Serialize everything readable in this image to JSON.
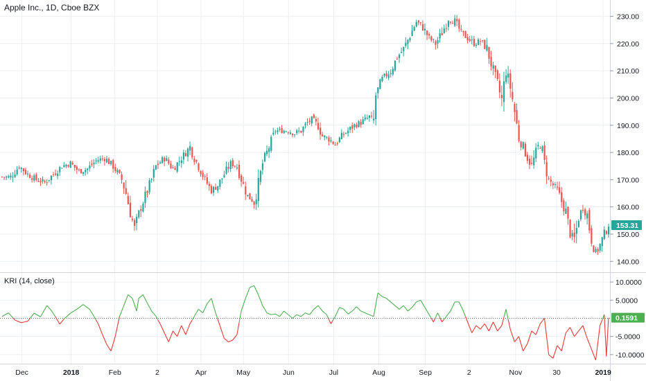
{
  "header": {
    "title": "Apple Inc., 1D, Cboe BZX"
  },
  "indicator": {
    "label": "KRI (14, close)"
  },
  "colors": {
    "up": "#26a69a",
    "down": "#ef5350",
    "kri_pos": "#4caf50",
    "kri_neg": "#e53935",
    "grid": "#eceff2"
  },
  "chart_data": [
    {
      "type": "candlestick",
      "title": "Apple Inc., 1D, Cboe BZX",
      "ylim": [
        136,
        236
      ],
      "y_ticks": [
        "140.00",
        "150.00",
        "160.00",
        "170.00",
        "180.00",
        "190.00",
        "200.00",
        "210.00",
        "220.00",
        "230.00"
      ],
      "last_price": "153.31",
      "x_labels": [
        "Dec",
        "2018",
        "Feb",
        "2",
        "Apr",
        "May",
        "Jun",
        "Jul",
        "Aug",
        "Sep",
        "2",
        "Nov",
        "30",
        "2019"
      ],
      "close_path": [
        [
          0,
          171
        ],
        [
          4,
          171
        ],
        [
          8,
          175
        ],
        [
          12,
          172
        ],
        [
          16,
          170
        ],
        [
          20,
          169
        ],
        [
          24,
          172
        ],
        [
          28,
          175
        ],
        [
          32,
          176
        ],
        [
          36,
          173
        ],
        [
          40,
          174
        ],
        [
          44,
          177
        ],
        [
          48,
          178
        ],
        [
          52,
          175
        ],
        [
          56,
          170
        ],
        [
          58,
          165
        ],
        [
          60,
          158
        ],
        [
          62,
          152
        ],
        [
          65,
          160
        ],
        [
          70,
          170
        ],
        [
          72,
          175
        ],
        [
          76,
          178
        ],
        [
          80,
          174
        ],
        [
          82,
          176
        ],
        [
          85,
          179
        ],
        [
          88,
          182
        ],
        [
          90,
          178
        ],
        [
          92,
          175
        ],
        [
          95,
          170
        ],
        [
          98,
          166
        ],
        [
          101,
          168
        ],
        [
          104,
          172
        ],
        [
          107,
          176
        ],
        [
          110,
          175
        ],
        [
          113,
          168
        ],
        [
          115,
          164
        ],
        [
          118,
          162
        ],
        [
          120,
          168
        ],
        [
          122,
          176
        ],
        [
          125,
          182
        ],
        [
          128,
          188
        ],
        [
          131,
          188
        ],
        [
          134,
          188
        ],
        [
          137,
          187
        ],
        [
          140,
          188
        ],
        [
          143,
          191
        ],
        [
          145,
          192
        ],
        [
          148,
          190
        ],
        [
          150,
          186
        ],
        [
          153,
          185
        ],
        [
          156,
          183
        ],
        [
          159,
          186
        ],
        [
          162,
          188
        ],
        [
          165,
          190
        ],
        [
          168,
          191
        ],
        [
          172,
          193
        ],
        [
          174,
          191
        ],
        [
          175,
          201
        ],
        [
          178,
          207
        ],
        [
          182,
          210
        ],
        [
          185,
          215
        ],
        [
          188,
          218
        ],
        [
          191,
          223
        ],
        [
          194,
          228
        ],
        [
          197,
          226
        ],
        [
          200,
          222
        ],
        [
          203,
          220
        ],
        [
          206,
          224
        ],
        [
          209,
          229
        ],
        [
          212,
          228
        ],
        [
          215,
          224
        ],
        [
          218,
          222
        ],
        [
          221,
          220
        ],
        [
          224,
          221
        ],
        [
          227,
          218
        ],
        [
          230,
          210
        ],
        [
          232,
          205
        ],
        [
          234,
          199
        ],
        [
          236,
          210
        ],
        [
          238,
          204
        ],
        [
          240,
          195
        ],
        [
          242,
          185
        ],
        [
          244,
          182
        ],
        [
          246,
          178
        ],
        [
          248,
          175
        ],
        [
          250,
          180
        ],
        [
          252,
          184
        ],
        [
          254,
          176
        ],
        [
          256,
          170
        ],
        [
          258,
          168
        ],
        [
          260,
          166
        ],
        [
          262,
          162
        ],
        [
          264,
          158
        ],
        [
          266,
          150
        ],
        [
          268,
          148
        ],
        [
          270,
          156
        ],
        [
          272,
          160
        ],
        [
          274,
          157
        ],
        [
          276,
          148
        ],
        [
          278,
          143
        ],
        [
          280,
          146
        ],
        [
          282,
          150
        ],
        [
          284,
          153.31
        ]
      ]
    },
    {
      "type": "line",
      "title": "KRI (14, close)",
      "ylim": [
        -12.5,
        12.5
      ],
      "y_ticks": [
        "10.0000",
        "5.0000",
        "-5.0000",
        "-10.0000"
      ],
      "y_tick_values": [
        10,
        5,
        -5,
        -10
      ],
      "last_value": "0.1591",
      "values": [
        [
          0,
          0.5
        ],
        [
          3,
          1.5
        ],
        [
          6,
          -0.5
        ],
        [
          9,
          -1.2
        ],
        [
          12,
          -0.8
        ],
        [
          15,
          1.4
        ],
        [
          18,
          0.4
        ],
        [
          21,
          3.5
        ],
        [
          23,
          2.2
        ],
        [
          25,
          0.4
        ],
        [
          27,
          -1.6
        ],
        [
          29,
          -0.2
        ],
        [
          32,
          1.4
        ],
        [
          35,
          2.5
        ],
        [
          38,
          3.8
        ],
        [
          41,
          2.5
        ],
        [
          43,
          0.6
        ],
        [
          45,
          -1.5
        ],
        [
          47,
          -4.5
        ],
        [
          49,
          -7.2
        ],
        [
          51,
          -9.0
        ],
        [
          53,
          -5.0
        ],
        [
          55,
          0.5
        ],
        [
          57,
          3.5
        ],
        [
          59,
          6.5
        ],
        [
          61,
          5.5
        ],
        [
          63,
          2.0
        ],
        [
          64,
          5.5
        ],
        [
          66,
          6.5
        ],
        [
          68,
          4.2
        ],
        [
          70,
          2.0
        ],
        [
          72,
          0.6
        ],
        [
          74,
          -1.5
        ],
        [
          76,
          -4.0
        ],
        [
          78,
          -6.5
        ],
        [
          80,
          -3.5
        ],
        [
          82,
          -5.0
        ],
        [
          84,
          -2.0
        ],
        [
          86,
          -4.5
        ],
        [
          88,
          -1.5
        ],
        [
          90,
          0.5
        ],
        [
          92,
          2.5
        ],
        [
          94,
          1.5
        ],
        [
          96,
          4.0
        ],
        [
          98,
          5.5
        ],
        [
          100,
          1.5
        ],
        [
          102,
          -2.0
        ],
        [
          104,
          -5.5
        ],
        [
          106,
          -6.5
        ],
        [
          108,
          -6.0
        ],
        [
          110,
          -4.5
        ],
        [
          112,
          2.0
        ],
        [
          114,
          5.5
        ],
        [
          116,
          8.5
        ],
        [
          118,
          9.0
        ],
        [
          120,
          6.5
        ],
        [
          122,
          3.5
        ],
        [
          124,
          1.5
        ],
        [
          126,
          1.0
        ],
        [
          128,
          1.2
        ],
        [
          130,
          0.5
        ],
        [
          132,
          2.0
        ],
        [
          134,
          1.0
        ],
        [
          136,
          0.0
        ],
        [
          138,
          1.0
        ],
        [
          140,
          0.5
        ],
        [
          142,
          1.5
        ],
        [
          144,
          1.0
        ],
        [
          146,
          2.5
        ],
        [
          148,
          3.5
        ],
        [
          150,
          2.0
        ],
        [
          152,
          1.0
        ],
        [
          154,
          -1.5
        ],
        [
          156,
          0.5
        ],
        [
          158,
          3.0
        ],
        [
          160,
          2.5
        ],
        [
          162,
          1.2
        ],
        [
          164,
          2.0
        ],
        [
          166,
          3.2
        ],
        [
          168,
          2.0
        ],
        [
          170,
          1.5
        ],
        [
          172,
          1.0
        ],
        [
          174,
          0.5
        ],
        [
          176,
          7.0
        ],
        [
          178,
          6.0
        ],
        [
          180,
          5.5
        ],
        [
          182,
          4.5
        ],
        [
          184,
          3.5
        ],
        [
          186,
          2.5
        ],
        [
          188,
          3.5
        ],
        [
          190,
          2.0
        ],
        [
          192,
          3.0
        ],
        [
          194,
          4.5
        ],
        [
          196,
          5.0
        ],
        [
          198,
          3.0
        ],
        [
          200,
          1.0
        ],
        [
          202,
          -1.0
        ],
        [
          204,
          1.5
        ],
        [
          206,
          -1.0
        ],
        [
          208,
          0.5
        ],
        [
          210,
          2.0
        ],
        [
          212,
          4.5
        ],
        [
          214,
          4.5
        ],
        [
          216,
          2.0
        ],
        [
          218,
          -1.0
        ],
        [
          220,
          -4.0
        ],
        [
          222,
          -2.0
        ],
        [
          224,
          -3.0
        ],
        [
          226,
          -1.5
        ],
        [
          228,
          -3.5
        ],
        [
          230,
          -1.0
        ],
        [
          232,
          -3.5
        ],
        [
          234,
          -2.0
        ],
        [
          236,
          2.5
        ],
        [
          238,
          -3.0
        ],
        [
          240,
          -6.5
        ],
        [
          242,
          -5.0
        ],
        [
          244,
          -9.0
        ],
        [
          246,
          -7.0
        ],
        [
          248,
          -3.5
        ],
        [
          250,
          -4.5
        ],
        [
          252,
          -1.5
        ],
        [
          254,
          0.0
        ],
        [
          256,
          -10.0
        ],
        [
          258,
          -11.0
        ],
        [
          260,
          -7.5
        ],
        [
          262,
          -9.0
        ],
        [
          264,
          -4.0
        ],
        [
          266,
          -2.5
        ],
        [
          268,
          -5.0
        ],
        [
          270,
          -3.5
        ],
        [
          272,
          -2.0
        ],
        [
          274,
          -5.5
        ],
        [
          276,
          -8.5
        ],
        [
          278,
          -11.5
        ],
        [
          280,
          -2.0
        ],
        [
          282,
          1.0
        ],
        [
          283,
          -10.5
        ],
        [
          284,
          0.1591
        ]
      ]
    }
  ]
}
